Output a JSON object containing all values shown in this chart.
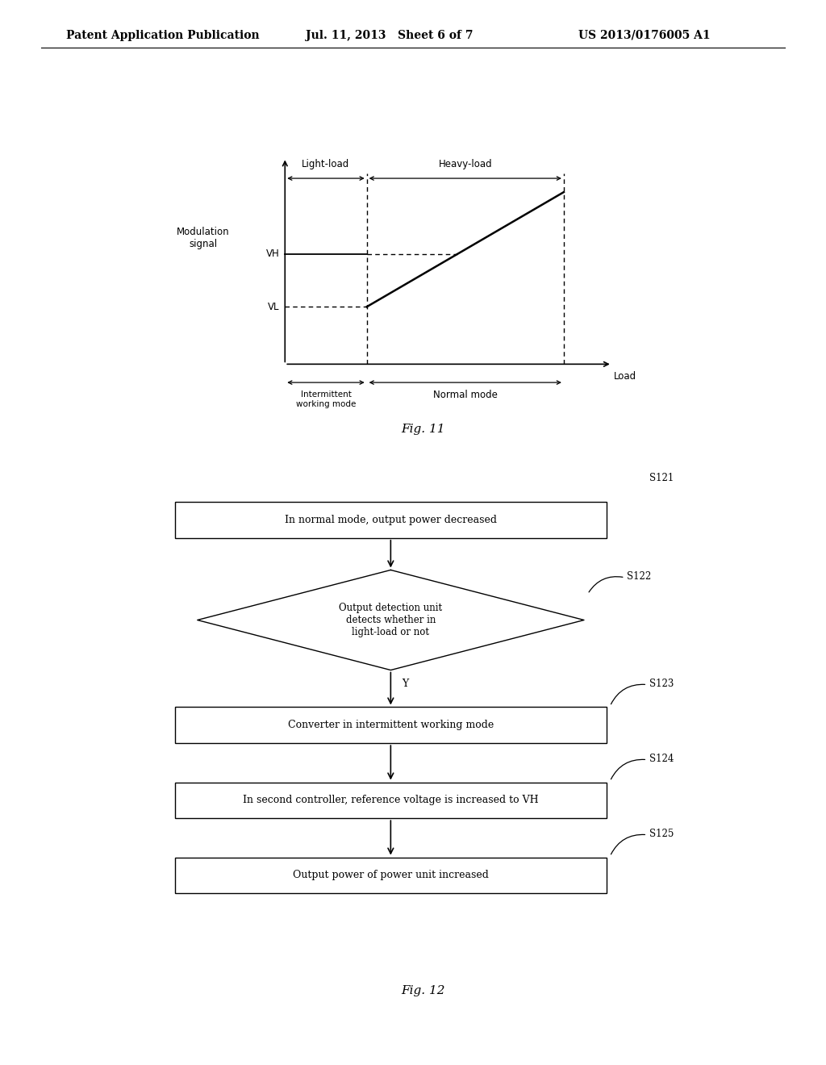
{
  "bg_color": "#ffffff",
  "header_left": "Patent Application Publication",
  "header_mid": "Jul. 11, 2013   Sheet 6 of 7",
  "header_right": "US 2013/0176005 A1",
  "fig11_label": "Fig. 11",
  "fig12_label": "Fig. 12",
  "graph_ylabel": "Modulation\nsignal",
  "graph_xlabel": "Load",
  "graph_VH": "VH",
  "graph_VL": "VL",
  "graph_light_load": "Light-load",
  "graph_heavy_load": "Heavy-load",
  "graph_intermittent": "Intermittent\nworking mode",
  "graph_normal_mode": "Normal mode",
  "flowchart_steps": [
    {
      "id": "S121",
      "type": "rect",
      "text": "In normal mode, output power decreased",
      "label": "S121"
    },
    {
      "id": "S122",
      "type": "diamond",
      "text": "Output detection unit\ndetects whether in\nlight-load or not",
      "label": "S122"
    },
    {
      "id": "S123",
      "type": "rect",
      "text": "Converter in intermittent working mode",
      "label": "S123"
    },
    {
      "id": "S124",
      "type": "rect",
      "text": "In second controller, reference voltage is increased to VH",
      "label": "S124"
    },
    {
      "id": "S125",
      "type": "rect",
      "text": "Output power of power unit increased",
      "label": "S125"
    }
  ],
  "diamond_y_label": "Y"
}
